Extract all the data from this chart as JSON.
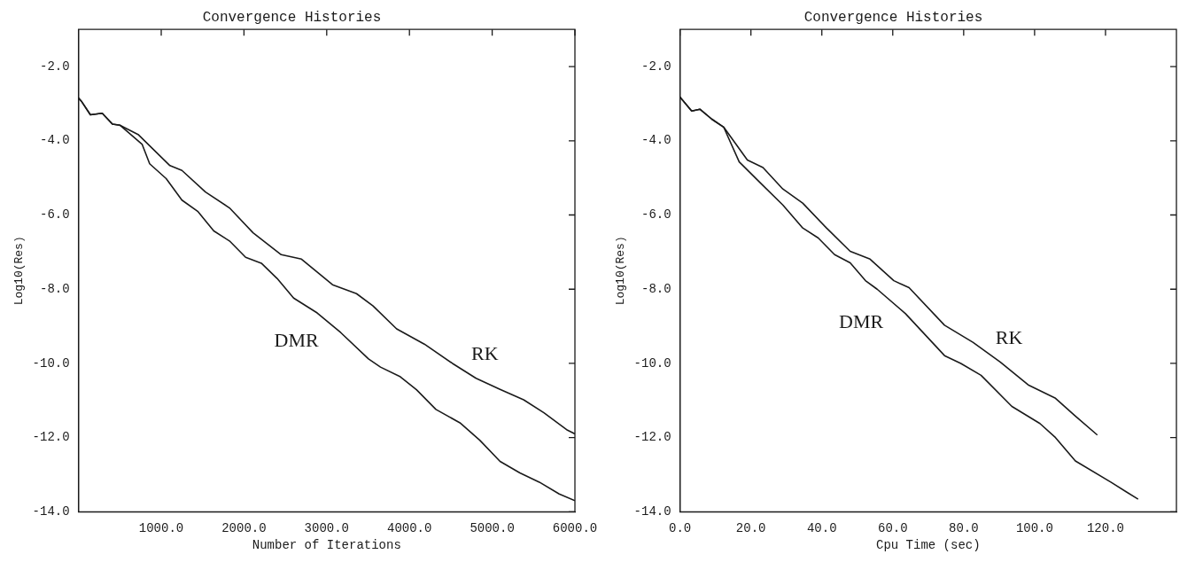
{
  "chart_data": [
    {
      "type": "line",
      "title": "Convergence Histories",
      "xlabel": "Number of Iterations",
      "ylabel": "Log10(Res)",
      "xlim": [
        0,
        6000
      ],
      "ylim": [
        -14,
        -1
      ],
      "xticks": [
        {
          "value": 1000,
          "label": "1000.0"
        },
        {
          "value": 2000,
          "label": "2000.0"
        },
        {
          "value": 3000,
          "label": "3000.0"
        },
        {
          "value": 4000,
          "label": "4000.0"
        },
        {
          "value": 5000,
          "label": "5000.0"
        },
        {
          "value": 6000,
          "label": "6000.0"
        }
      ],
      "yticks": [
        {
          "value": -14,
          "label": "-14.0"
        },
        {
          "value": -12,
          "label": "-12.0"
        },
        {
          "value": -10,
          "label": "-10.0"
        },
        {
          "value": -8,
          "label": "-8.0"
        },
        {
          "value": -6,
          "label": "-6.0"
        },
        {
          "value": -4,
          "label": "-4.0"
        },
        {
          "value": -2,
          "label": "-2.0"
        }
      ],
      "grid": false,
      "legend": false,
      "marker": "none",
      "line_style": "solid",
      "series": [
        {
          "name": "RK",
          "color": "#1a1a1a",
          "x": [
            0,
            40,
            144,
            287,
            410,
            500,
            720,
            1105,
            1250,
            1535,
            1825,
            2110,
            2450,
            2695,
            2930,
            3070,
            3360,
            3560,
            3845,
            4180,
            4520,
            4805,
            5095,
            5380,
            5625,
            5910,
            6000
          ],
          "values": [
            -2.85,
            -2.95,
            -3.3,
            -3.26,
            -3.55,
            -3.58,
            -3.83,
            -4.67,
            -4.8,
            -5.38,
            -5.81,
            -6.48,
            -7.07,
            -7.19,
            -7.62,
            -7.88,
            -8.12,
            -8.45,
            -9.07,
            -9.48,
            -10.0,
            -10.4,
            -10.7,
            -10.98,
            -11.33,
            -11.8,
            -11.9
          ]
        },
        {
          "name": "DMR",
          "color": "#1a1a1a",
          "x": [
            0,
            40,
            144,
            287,
            410,
            500,
            770,
            860,
            1060,
            1250,
            1440,
            1635,
            1825,
            2020,
            2210,
            2400,
            2600,
            2885,
            3170,
            3505,
            3650,
            3890,
            4085,
            4320,
            4610,
            4850,
            5095,
            5335,
            5570,
            5810,
            6000
          ],
          "values": [
            -2.85,
            -2.95,
            -3.3,
            -3.26,
            -3.55,
            -3.58,
            -4.1,
            -4.62,
            -5.02,
            -5.6,
            -5.9,
            -6.43,
            -6.7,
            -7.14,
            -7.3,
            -7.71,
            -8.24,
            -8.64,
            -9.17,
            -9.88,
            -10.1,
            -10.36,
            -10.71,
            -11.24,
            -11.6,
            -12.07,
            -12.64,
            -12.95,
            -13.2,
            -13.52,
            -13.7
          ]
        }
      ]
    },
    {
      "type": "line",
      "title": "Convergence Histories",
      "xlabel": "Cpu Time (sec)",
      "ylabel": "Log10(Res)",
      "xlim": [
        0,
        140
      ],
      "ylim": [
        -14,
        -1
      ],
      "xticks": [
        {
          "value": 0,
          "label": "0.0"
        },
        {
          "value": 20,
          "label": "20.0"
        },
        {
          "value": 40,
          "label": "40.0"
        },
        {
          "value": 60,
          "label": "60.0"
        },
        {
          "value": 80,
          "label": "80.0"
        },
        {
          "value": 100,
          "label": "100.0"
        },
        {
          "value": 120,
          "label": "120.0"
        }
      ],
      "yticks": [
        {
          "value": -14,
          "label": "-14.0"
        },
        {
          "value": -12,
          "label": "-12.0"
        },
        {
          "value": -10,
          "label": "-10.0"
        },
        {
          "value": -8,
          "label": "-8.0"
        },
        {
          "value": -6,
          "label": "-6.0"
        },
        {
          "value": -4,
          "label": "-4.0"
        },
        {
          "value": -2,
          "label": "-2.0"
        }
      ],
      "grid": false,
      "legend": false,
      "marker": "none",
      "line_style": "solid",
      "series": [
        {
          "name": "RK",
          "color": "#1a1a1a",
          "x": [
            0,
            3.3,
            5.6,
            9,
            12.3,
            19,
            23.4,
            29,
            34.6,
            41.3,
            48,
            53.6,
            60.3,
            64.6,
            74.6,
            82.6,
            90.3,
            98.2,
            105.9,
            111.5,
            117.7
          ],
          "values": [
            -2.82,
            -3.2,
            -3.15,
            -3.42,
            -3.63,
            -4.52,
            -4.72,
            -5.3,
            -5.68,
            -6.35,
            -6.98,
            -7.19,
            -7.77,
            -7.96,
            -8.97,
            -9.43,
            -9.96,
            -10.58,
            -10.94,
            -11.42,
            -11.93
          ]
        },
        {
          "name": "DMR",
          "color": "#1a1a1a",
          "x": [
            0,
            3.3,
            5.6,
            9,
            12.3,
            16.7,
            22.3,
            29,
            34.6,
            39,
            43.6,
            48,
            52.3,
            55.6,
            63.6,
            74.6,
            79.2,
            84.9,
            93.6,
            101.5,
            105.9,
            111.5,
            121.5,
            129.2
          ],
          "values": [
            -2.82,
            -3.2,
            -3.15,
            -3.42,
            -3.63,
            -4.57,
            -5.1,
            -5.73,
            -6.35,
            -6.62,
            -7.07,
            -7.29,
            -7.77,
            -8.0,
            -8.66,
            -9.79,
            -10.0,
            -10.32,
            -11.16,
            -11.62,
            -12.0,
            -12.63,
            -13.2,
            -13.66
          ]
        }
      ]
    }
  ]
}
